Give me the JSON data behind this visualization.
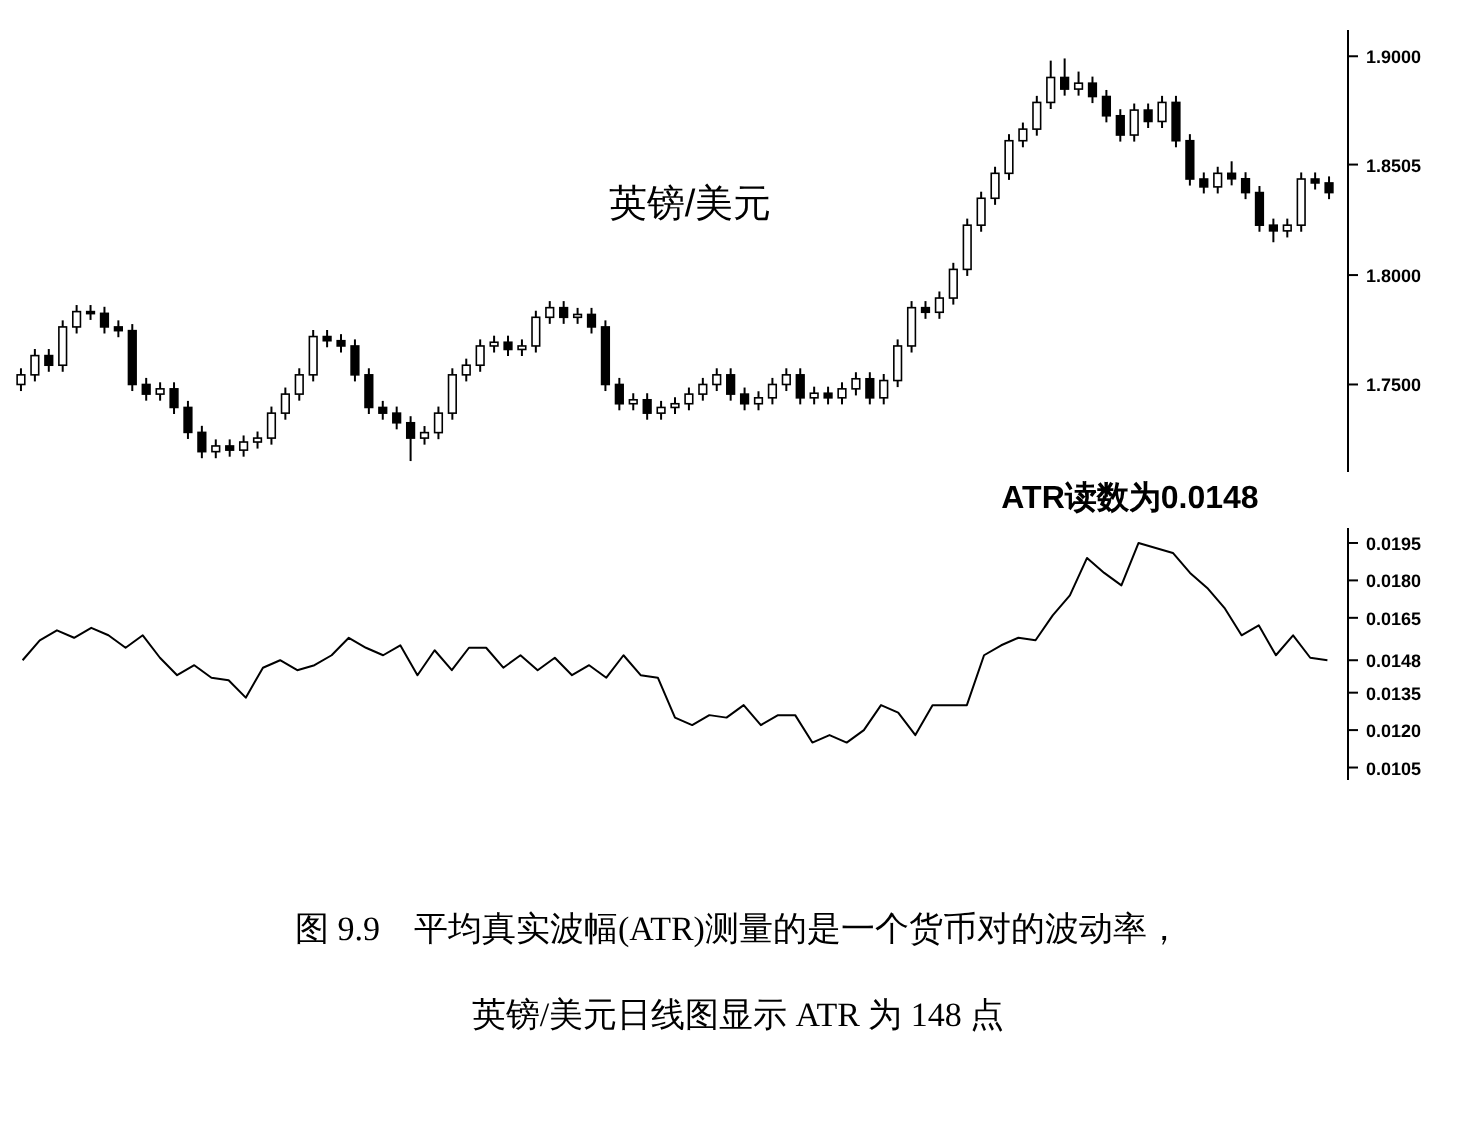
{
  "chart_data": [
    {
      "type": "candlestick",
      "color": "#000000",
      "annotations": [
        "英镑/美元"
      ],
      "categories": [
        null,
        null,
        null,
        null,
        null,
        null,
        null,
        null,
        null,
        null,
        null,
        null,
        null,
        null,
        null,
        null,
        null,
        null,
        null,
        null,
        null,
        null,
        null,
        null,
        null,
        null,
        null,
        null,
        null,
        null,
        null,
        null,
        null,
        null,
        null,
        null,
        null,
        null,
        null,
        null,
        null,
        null,
        null,
        null,
        null,
        null,
        null,
        null,
        null,
        null,
        null,
        null,
        null,
        null,
        null,
        null,
        null,
        null,
        null,
        null,
        null,
        null,
        null,
        null,
        null,
        null,
        null,
        null,
        null,
        null,
        null,
        null,
        null,
        null,
        null,
        null,
        null,
        null,
        null,
        null,
        null,
        null,
        null,
        null,
        null,
        null,
        null,
        null,
        null,
        null,
        null,
        null,
        null,
        null,
        null
      ],
      "ohlc": [
        [
          1.75,
          1.7574,
          1.747,
          1.7544
        ],
        [
          1.7544,
          1.7662,
          1.7514,
          1.7632
        ],
        [
          1.7632,
          1.7662,
          1.7558,
          1.7588
        ],
        [
          1.7588,
          1.7793,
          1.7558,
          1.7763
        ],
        [
          1.7763,
          1.7863,
          1.7733,
          1.7833
        ],
        [
          1.7833,
          1.7863,
          1.7795,
          1.7825
        ],
        [
          1.7825,
          1.7855,
          1.7733,
          1.7763
        ],
        [
          1.7763,
          1.7793,
          1.7716,
          1.7746
        ],
        [
          1.7746,
          1.7776,
          1.747,
          1.75
        ],
        [
          1.75,
          1.753,
          1.7426,
          1.7456
        ],
        [
          1.7456,
          1.751,
          1.7426,
          1.748
        ],
        [
          1.748,
          1.751,
          1.7365,
          1.7395
        ],
        [
          1.7395,
          1.7425,
          1.7251,
          1.7281
        ],
        [
          1.7281,
          1.7311,
          1.7163,
          1.7193
        ],
        [
          1.7193,
          1.7249,
          1.7163,
          1.7219
        ],
        [
          1.7219,
          1.7249,
          1.717,
          1.72
        ],
        [
          1.72,
          1.7267,
          1.717,
          1.7237
        ],
        [
          1.7237,
          1.7285,
          1.7207,
          1.7255
        ],
        [
          1.7255,
          1.7399,
          1.7225,
          1.7369
        ],
        [
          1.7369,
          1.7486,
          1.7339,
          1.7456
        ],
        [
          1.7456,
          1.7574,
          1.7426,
          1.7544
        ],
        [
          1.7544,
          1.7749,
          1.7514,
          1.7719
        ],
        [
          1.7719,
          1.7749,
          1.767,
          1.77
        ],
        [
          1.77,
          1.773,
          1.7646,
          1.7676
        ],
        [
          1.7676,
          1.7706,
          1.7514,
          1.7544
        ],
        [
          1.7544,
          1.7574,
          1.7365,
          1.7395
        ],
        [
          1.7395,
          1.7425,
          1.7339,
          1.7369
        ],
        [
          1.7369,
          1.7399,
          1.7295,
          1.7325
        ],
        [
          1.7325,
          1.7355,
          1.715,
          1.7255
        ],
        [
          1.7255,
          1.731,
          1.7225,
          1.728
        ],
        [
          1.728,
          1.7399,
          1.725,
          1.7369
        ],
        [
          1.7369,
          1.7574,
          1.7339,
          1.7544
        ],
        [
          1.7544,
          1.7618,
          1.7514,
          1.7588
        ],
        [
          1.7588,
          1.7706,
          1.7558,
          1.7676
        ],
        [
          1.7676,
          1.7723,
          1.7646,
          1.7693
        ],
        [
          1.7693,
          1.7723,
          1.763,
          1.766
        ],
        [
          1.766,
          1.7706,
          1.763,
          1.7676
        ],
        [
          1.7676,
          1.7837,
          1.7646,
          1.7807
        ],
        [
          1.7807,
          1.7881,
          1.7777,
          1.7851
        ],
        [
          1.7851,
          1.7881,
          1.7777,
          1.7807
        ],
        [
          1.7807,
          1.785,
          1.7777,
          1.782
        ],
        [
          1.782,
          1.785,
          1.7733,
          1.7763
        ],
        [
          1.7763,
          1.7793,
          1.747,
          1.75
        ],
        [
          1.75,
          1.753,
          1.7382,
          1.7412
        ],
        [
          1.7412,
          1.746,
          1.7382,
          1.743
        ],
        [
          1.743,
          1.746,
          1.7339,
          1.7369
        ],
        [
          1.7369,
          1.7425,
          1.7339,
          1.7395
        ],
        [
          1.7395,
          1.7442,
          1.7365,
          1.7412
        ],
        [
          1.7412,
          1.7486,
          1.7382,
          1.7456
        ],
        [
          1.7456,
          1.753,
          1.7426,
          1.75
        ],
        [
          1.75,
          1.7574,
          1.747,
          1.7544
        ],
        [
          1.7544,
          1.7574,
          1.7426,
          1.7456
        ],
        [
          1.7456,
          1.7486,
          1.7382,
          1.7412
        ],
        [
          1.7412,
          1.7469,
          1.7382,
          1.7439
        ],
        [
          1.7439,
          1.753,
          1.7409,
          1.75
        ],
        [
          1.75,
          1.7574,
          1.747,
          1.7544
        ],
        [
          1.7544,
          1.7574,
          1.7409,
          1.7439
        ],
        [
          1.7439,
          1.749,
          1.7409,
          1.746
        ],
        [
          1.746,
          1.749,
          1.7409,
          1.7439
        ],
        [
          1.7439,
          1.751,
          1.7409,
          1.748
        ],
        [
          1.748,
          1.7556,
          1.745,
          1.7526
        ],
        [
          1.7526,
          1.7556,
          1.7409,
          1.7439
        ],
        [
          1.7439,
          1.7548,
          1.7409,
          1.7518
        ],
        [
          1.7518,
          1.7706,
          1.7488,
          1.7676
        ],
        [
          1.7676,
          1.7881,
          1.7646,
          1.7851
        ],
        [
          1.7851,
          1.7881,
          1.78,
          1.783
        ],
        [
          1.783,
          1.7925,
          1.78,
          1.7895
        ],
        [
          1.7895,
          1.8056,
          1.7865,
          1.8026
        ],
        [
          1.8026,
          1.8258,
          1.7996,
          1.8228
        ],
        [
          1.8228,
          1.8381,
          1.8198,
          1.8351
        ],
        [
          1.8351,
          1.8495,
          1.8321,
          1.8465
        ],
        [
          1.8465,
          1.8644,
          1.8435,
          1.8614
        ],
        [
          1.8614,
          1.8697,
          1.8584,
          1.8667
        ],
        [
          1.8667,
          1.8819,
          1.8637,
          1.8789
        ],
        [
          1.8789,
          1.898,
          1.8759,
          1.8903
        ],
        [
          1.8903,
          1.899,
          1.882,
          1.885
        ],
        [
          1.885,
          1.893,
          1.882,
          1.8877
        ],
        [
          1.8877,
          1.8907,
          1.8786,
          1.8816
        ],
        [
          1.8816,
          1.8846,
          1.8698,
          1.8728
        ],
        [
          1.8728,
          1.8758,
          1.861,
          1.864
        ],
        [
          1.864,
          1.8784,
          1.861,
          1.8754
        ],
        [
          1.8754,
          1.8784,
          1.8672,
          1.8702
        ],
        [
          1.8702,
          1.8819,
          1.8672,
          1.8789
        ],
        [
          1.8789,
          1.8819,
          1.8584,
          1.8614
        ],
        [
          1.8614,
          1.8644,
          1.8409,
          1.8439
        ],
        [
          1.8439,
          1.8469,
          1.8373,
          1.8403
        ],
        [
          1.8403,
          1.8495,
          1.8373,
          1.8465
        ],
        [
          1.8465,
          1.852,
          1.841,
          1.844
        ],
        [
          1.844,
          1.847,
          1.8347,
          1.8377
        ],
        [
          1.8377,
          1.8407,
          1.8198,
          1.8228
        ],
        [
          1.8228,
          1.8258,
          1.815,
          1.8202
        ],
        [
          1.8202,
          1.8258,
          1.8172,
          1.8228
        ],
        [
          1.8228,
          1.8469,
          1.8198,
          1.8439
        ],
        [
          1.8439,
          1.8469,
          1.8391,
          1.8421
        ],
        [
          1.8421,
          1.8451,
          1.8347,
          1.8377
        ]
      ],
      "ylim": [
        1.71,
        1.912
      ],
      "yticks": [
        {
          "value": 1.75,
          "label": "1.7500"
        },
        {
          "value": 1.8,
          "label": "1.8000"
        },
        {
          "value": 1.8505,
          "label": "1.8505"
        },
        {
          "value": 1.9,
          "label": "1.9000"
        }
      ]
    },
    {
      "type": "line",
      "title": "图 9.9　平均真实波幅(ATR)测量的是一个货币对的波动率，",
      "subtitle": "英镑/美元日线图显示 ATR 为 148 点",
      "annotations": [
        "ATR读数为0.0148"
      ],
      "categories": [
        null,
        null,
        null,
        null,
        null,
        null,
        null,
        null,
        null,
        null,
        null,
        null,
        null,
        null,
        null,
        null,
        null,
        null,
        null,
        null,
        null,
        null,
        null,
        null,
        null,
        null,
        null,
        null,
        null,
        null,
        null,
        null,
        null,
        null,
        null,
        null,
        null,
        null,
        null,
        null,
        null,
        null,
        null,
        null,
        null,
        null,
        null,
        null,
        null,
        null,
        null,
        null,
        null,
        null,
        null,
        null,
        null,
        null,
        null,
        null,
        null,
        null,
        null,
        null,
        null,
        null,
        null,
        null,
        null,
        null,
        null,
        null,
        null,
        null,
        null,
        null,
        null
      ],
      "series": [
        {
          "color": "#000000",
          "values": [
            0.0148,
            0.0156,
            0.016,
            0.0157,
            0.0161,
            0.0158,
            0.0153,
            0.0158,
            0.0149,
            0.0142,
            0.0146,
            0.0141,
            0.014,
            0.0133,
            0.0145,
            0.0148,
            0.0144,
            0.0146,
            0.015,
            0.0157,
            0.0153,
            0.015,
            0.0154,
            0.0142,
            0.0152,
            0.0144,
            0.0153,
            0.0153,
            0.0145,
            0.015,
            0.0144,
            0.0149,
            0.0142,
            0.0146,
            0.0141,
            0.015,
            0.0142,
            0.0141,
            0.0125,
            0.0122,
            0.0126,
            0.0125,
            0.013,
            0.0122,
            0.0126,
            0.0126,
            0.0115,
            0.0118,
            0.0115,
            0.012,
            0.013,
            0.0127,
            0.0118,
            0.013,
            0.013,
            0.013,
            0.015,
            0.0154,
            0.0157,
            0.0156,
            0.0166,
            0.0174,
            0.0189,
            0.0183,
            0.0178,
            0.0195,
            0.0193,
            0.0191,
            0.0183,
            0.0177,
            0.0169,
            0.0158,
            0.0162,
            0.015,
            0.0158,
            0.0149,
            0.0148
          ]
        }
      ],
      "ylim": [
        0.01,
        0.0201
      ],
      "yticks": [
        {
          "value": 0.0105,
          "label": "0.0105"
        },
        {
          "value": 0.012,
          "label": "0.0120"
        },
        {
          "value": 0.0135,
          "label": "0.0135"
        },
        {
          "value": 0.0148,
          "label": "0.0148"
        },
        {
          "value": 0.0165,
          "label": "0.0165"
        },
        {
          "value": 0.018,
          "label": "0.0180"
        },
        {
          "value": 0.0195,
          "label": "0.0195"
        }
      ]
    }
  ]
}
